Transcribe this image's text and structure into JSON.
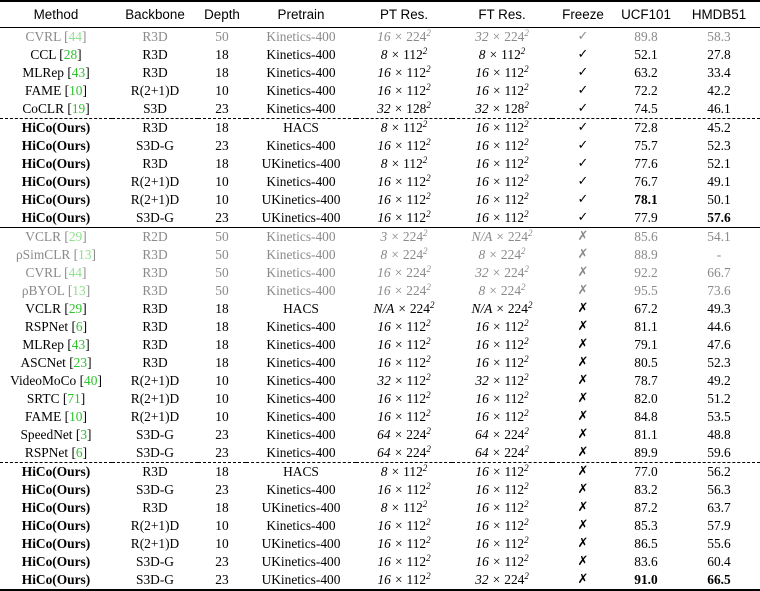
{
  "columns": [
    "Method",
    "Backbone",
    "Depth",
    "Pretrain",
    "PT Res.",
    "FT Res.",
    "Freeze",
    "UCF101",
    "HMDB51"
  ],
  "rows": [
    {
      "method": "CVRL",
      "cite": "44",
      "backbone": "R3D",
      "depth": "50",
      "pretrain": "Kinetics-400",
      "pt": [
        "16",
        "224"
      ],
      "ft": [
        "32",
        "224"
      ],
      "freeze": "✓",
      "ucf": "89.8",
      "hmdb": "58.3",
      "gray": true,
      "bold": false,
      "sep": "",
      "best_ucf": false,
      "best_hmdb": false
    },
    {
      "method": "CCL",
      "cite": "28",
      "backbone": "R3D",
      "depth": "18",
      "pretrain": "Kinetics-400",
      "pt": [
        "8",
        "112"
      ],
      "ft": [
        "8",
        "112"
      ],
      "freeze": "✓",
      "ucf": "52.1",
      "hmdb": "27.8",
      "gray": false,
      "bold": false,
      "sep": "",
      "best_ucf": false,
      "best_hmdb": false
    },
    {
      "method": "MLRep",
      "cite": "43",
      "backbone": "R3D",
      "depth": "18",
      "pretrain": "Kinetics-400",
      "pt": [
        "16",
        "112"
      ],
      "ft": [
        "16",
        "112"
      ],
      "freeze": "✓",
      "ucf": "63.2",
      "hmdb": "33.4",
      "gray": false,
      "bold": false,
      "sep": "",
      "best_ucf": false,
      "best_hmdb": false
    },
    {
      "method": "FAME",
      "cite": "10",
      "backbone": "R(2+1)D",
      "depth": "10",
      "pretrain": "Kinetics-400",
      "pt": [
        "16",
        "112"
      ],
      "ft": [
        "16",
        "112"
      ],
      "freeze": "✓",
      "ucf": "72.2",
      "hmdb": "42.2",
      "gray": false,
      "bold": false,
      "sep": "",
      "best_ucf": false,
      "best_hmdb": false
    },
    {
      "method": "CoCLR",
      "cite": "19",
      "backbone": "S3D",
      "depth": "23",
      "pretrain": "Kinetics-400",
      "pt": [
        "32",
        "128"
      ],
      "ft": [
        "32",
        "128"
      ],
      "freeze": "✓",
      "ucf": "74.5",
      "hmdb": "46.1",
      "gray": false,
      "bold": false,
      "sep": "",
      "best_ucf": false,
      "best_hmdb": false
    },
    {
      "method": "HiCo(Ours)",
      "cite": "",
      "backbone": "R3D",
      "depth": "18",
      "pretrain": "HACS",
      "pt": [
        "8",
        "112"
      ],
      "ft": [
        "16",
        "112"
      ],
      "freeze": "✓",
      "ucf": "72.8",
      "hmdb": "45.2",
      "gray": false,
      "bold": true,
      "sep": "dash",
      "best_ucf": false,
      "best_hmdb": false
    },
    {
      "method": "HiCo(Ours)",
      "cite": "",
      "backbone": "S3D-G",
      "depth": "23",
      "pretrain": "Kinetics-400",
      "pt": [
        "16",
        "112"
      ],
      "ft": [
        "16",
        "112"
      ],
      "freeze": "✓",
      "ucf": "75.7",
      "hmdb": "52.3",
      "gray": false,
      "bold": true,
      "sep": "",
      "best_ucf": false,
      "best_hmdb": false
    },
    {
      "method": "HiCo(Ours)",
      "cite": "",
      "backbone": "R3D",
      "depth": "18",
      "pretrain": "UKinetics-400",
      "pt": [
        "8",
        "112"
      ],
      "ft": [
        "16",
        "112"
      ],
      "freeze": "✓",
      "ucf": "77.6",
      "hmdb": "52.1",
      "gray": false,
      "bold": true,
      "sep": "",
      "best_ucf": false,
      "best_hmdb": false
    },
    {
      "method": "HiCo(Ours)",
      "cite": "",
      "backbone": "R(2+1)D",
      "depth": "10",
      "pretrain": "Kinetics-400",
      "pt": [
        "16",
        "112"
      ],
      "ft": [
        "16",
        "112"
      ],
      "freeze": "✓",
      "ucf": "76.7",
      "hmdb": "49.1",
      "gray": false,
      "bold": true,
      "sep": "",
      "best_ucf": false,
      "best_hmdb": false
    },
    {
      "method": "HiCo(Ours)",
      "cite": "",
      "backbone": "R(2+1)D",
      "depth": "10",
      "pretrain": "UKinetics-400",
      "pt": [
        "16",
        "112"
      ],
      "ft": [
        "16",
        "112"
      ],
      "freeze": "✓",
      "ucf": "78.1",
      "hmdb": "50.1",
      "gray": false,
      "bold": true,
      "sep": "",
      "best_ucf": true,
      "best_hmdb": false
    },
    {
      "method": "HiCo(Ours)",
      "cite": "",
      "backbone": "S3D-G",
      "depth": "23",
      "pretrain": "UKinetics-400",
      "pt": [
        "16",
        "112"
      ],
      "ft": [
        "16",
        "112"
      ],
      "freeze": "✓",
      "ucf": "77.9",
      "hmdb": "57.6",
      "gray": false,
      "bold": true,
      "sep": "",
      "best_ucf": false,
      "best_hmdb": true
    },
    {
      "method": "VCLR",
      "cite": "29",
      "backbone": "R2D",
      "depth": "50",
      "pretrain": "Kinetics-400",
      "pt": [
        "3",
        "224"
      ],
      "ft": [
        "N/A",
        "224"
      ],
      "freeze": "✗",
      "ucf": "85.6",
      "hmdb": "54.1",
      "gray": true,
      "bold": false,
      "sep": "solid",
      "best_ucf": false,
      "best_hmdb": false
    },
    {
      "method": "ρSimCLR",
      "cite": "13",
      "backbone": "R3D",
      "depth": "50",
      "pretrain": "Kinetics-400",
      "pt": [
        "8",
        "224"
      ],
      "ft": [
        "8",
        "224"
      ],
      "freeze": "✗",
      "ucf": "88.9",
      "hmdb": "-",
      "gray": true,
      "bold": false,
      "sep": "",
      "best_ucf": false,
      "best_hmdb": false
    },
    {
      "method": "CVRL",
      "cite": "44",
      "backbone": "R3D",
      "depth": "50",
      "pretrain": "Kinetics-400",
      "pt": [
        "16",
        "224"
      ],
      "ft": [
        "32",
        "224"
      ],
      "freeze": "✗",
      "ucf": "92.2",
      "hmdb": "66.7",
      "gray": true,
      "bold": false,
      "sep": "",
      "best_ucf": false,
      "best_hmdb": false
    },
    {
      "method": "ρBYOL",
      "cite": "13",
      "backbone": "R3D",
      "depth": "50",
      "pretrain": "Kinetics-400",
      "pt": [
        "16",
        "224"
      ],
      "ft": [
        "8",
        "224"
      ],
      "freeze": "✗",
      "ucf": "95.5",
      "hmdb": "73.6",
      "gray": true,
      "bold": false,
      "sep": "",
      "best_ucf": false,
      "best_hmdb": false
    },
    {
      "method": "VCLR",
      "cite": "29",
      "backbone": "R3D",
      "depth": "18",
      "pretrain": "HACS",
      "pt": [
        "N/A",
        "224"
      ],
      "ft": [
        "N/A",
        "224"
      ],
      "freeze": "✗",
      "ucf": "67.2",
      "hmdb": "49.3",
      "gray": false,
      "bold": false,
      "sep": "",
      "best_ucf": false,
      "best_hmdb": false
    },
    {
      "method": "RSPNet",
      "cite": "6",
      "backbone": "R3D",
      "depth": "18",
      "pretrain": "Kinetics-400",
      "pt": [
        "16",
        "112"
      ],
      "ft": [
        "16",
        "112"
      ],
      "freeze": "✗",
      "ucf": "81.1",
      "hmdb": "44.6",
      "gray": false,
      "bold": false,
      "sep": "",
      "best_ucf": false,
      "best_hmdb": false
    },
    {
      "method": "MLRep",
      "cite": "43",
      "backbone": "R3D",
      "depth": "18",
      "pretrain": "Kinetics-400",
      "pt": [
        "16",
        "112"
      ],
      "ft": [
        "16",
        "112"
      ],
      "freeze": "✗",
      "ucf": "79.1",
      "hmdb": "47.6",
      "gray": false,
      "bold": false,
      "sep": "",
      "best_ucf": false,
      "best_hmdb": false
    },
    {
      "method": "ASCNet",
      "cite": "23",
      "backbone": "R3D",
      "depth": "18",
      "pretrain": "Kinetics-400",
      "pt": [
        "16",
        "112"
      ],
      "ft": [
        "16",
        "112"
      ],
      "freeze": "✗",
      "ucf": "80.5",
      "hmdb": "52.3",
      "gray": false,
      "bold": false,
      "sep": "",
      "best_ucf": false,
      "best_hmdb": false
    },
    {
      "method": "VideoMoCo",
      "cite": "40",
      "backbone": "R(2+1)D",
      "depth": "10",
      "pretrain": "Kinetics-400",
      "pt": [
        "32",
        "112"
      ],
      "ft": [
        "32",
        "112"
      ],
      "freeze": "✗",
      "ucf": "78.7",
      "hmdb": "49.2",
      "gray": false,
      "bold": false,
      "sep": "",
      "best_ucf": false,
      "best_hmdb": false
    },
    {
      "method": "SRTC",
      "cite": "71",
      "backbone": "R(2+1)D",
      "depth": "10",
      "pretrain": "Kinetics-400",
      "pt": [
        "16",
        "112"
      ],
      "ft": [
        "16",
        "112"
      ],
      "freeze": "✗",
      "ucf": "82.0",
      "hmdb": "51.2",
      "gray": false,
      "bold": false,
      "sep": "",
      "best_ucf": false,
      "best_hmdb": false
    },
    {
      "method": "FAME",
      "cite": "10",
      "backbone": "R(2+1)D",
      "depth": "10",
      "pretrain": "Kinetics-400",
      "pt": [
        "16",
        "112"
      ],
      "ft": [
        "16",
        "112"
      ],
      "freeze": "✗",
      "ucf": "84.8",
      "hmdb": "53.5",
      "gray": false,
      "bold": false,
      "sep": "",
      "best_ucf": false,
      "best_hmdb": false
    },
    {
      "method": "SpeedNet",
      "cite": "3",
      "backbone": "S3D-G",
      "depth": "23",
      "pretrain": "Kinetics-400",
      "pt": [
        "64",
        "224"
      ],
      "ft": [
        "64",
        "224"
      ],
      "freeze": "✗",
      "ucf": "81.1",
      "hmdb": "48.8",
      "gray": false,
      "bold": false,
      "sep": "",
      "best_ucf": false,
      "best_hmdb": false
    },
    {
      "method": "RSPNet",
      "cite": "6",
      "backbone": "S3D-G",
      "depth": "23",
      "pretrain": "Kinetics-400",
      "pt": [
        "64",
        "224"
      ],
      "ft": [
        "64",
        "224"
      ],
      "freeze": "✗",
      "ucf": "89.9",
      "hmdb": "59.6",
      "gray": false,
      "bold": false,
      "sep": "",
      "best_ucf": false,
      "best_hmdb": false
    },
    {
      "method": "HiCo(Ours)",
      "cite": "",
      "backbone": "R3D",
      "depth": "18",
      "pretrain": "HACS",
      "pt": [
        "8",
        "112"
      ],
      "ft": [
        "16",
        "112"
      ],
      "freeze": "✗",
      "ucf": "77.0",
      "hmdb": "56.2",
      "gray": false,
      "bold": true,
      "sep": "dash",
      "best_ucf": false,
      "best_hmdb": false
    },
    {
      "method": "HiCo(Ours)",
      "cite": "",
      "backbone": "S3D-G",
      "depth": "23",
      "pretrain": "Kinetics-400",
      "pt": [
        "16",
        "112"
      ],
      "ft": [
        "16",
        "112"
      ],
      "freeze": "✗",
      "ucf": "83.2",
      "hmdb": "56.3",
      "gray": false,
      "bold": true,
      "sep": "",
      "best_ucf": false,
      "best_hmdb": false
    },
    {
      "method": "HiCo(Ours)",
      "cite": "",
      "backbone": "R3D",
      "depth": "18",
      "pretrain": "UKinetics-400",
      "pt": [
        "8",
        "112"
      ],
      "ft": [
        "16",
        "112"
      ],
      "freeze": "✗",
      "ucf": "87.2",
      "hmdb": "63.7",
      "gray": false,
      "bold": true,
      "sep": "",
      "best_ucf": false,
      "best_hmdb": false
    },
    {
      "method": "HiCo(Ours)",
      "cite": "",
      "backbone": "R(2+1)D",
      "depth": "10",
      "pretrain": "Kinetics-400",
      "pt": [
        "16",
        "112"
      ],
      "ft": [
        "16",
        "112"
      ],
      "freeze": "✗",
      "ucf": "85.3",
      "hmdb": "57.9",
      "gray": false,
      "bold": true,
      "sep": "",
      "best_ucf": false,
      "best_hmdb": false
    },
    {
      "method": "HiCo(Ours)",
      "cite": "",
      "backbone": "R(2+1)D",
      "depth": "10",
      "pretrain": "UKinetics-400",
      "pt": [
        "16",
        "112"
      ],
      "ft": [
        "16",
        "112"
      ],
      "freeze": "✗",
      "ucf": "86.5",
      "hmdb": "55.6",
      "gray": false,
      "bold": true,
      "sep": "",
      "best_ucf": false,
      "best_hmdb": false
    },
    {
      "method": "HiCo(Ours)",
      "cite": "",
      "backbone": "S3D-G",
      "depth": "23",
      "pretrain": "UKinetics-400",
      "pt": [
        "16",
        "112"
      ],
      "ft": [
        "16",
        "112"
      ],
      "freeze": "✗",
      "ucf": "83.6",
      "hmdb": "60.4",
      "gray": false,
      "bold": true,
      "sep": "",
      "best_ucf": false,
      "best_hmdb": false
    },
    {
      "method": "HiCo(Ours)",
      "cite": "",
      "backbone": "S3D-G",
      "depth": "23",
      "pretrain": "UKinetics-400",
      "pt": [
        "16",
        "112"
      ],
      "ft": [
        "32",
        "224"
      ],
      "freeze": "✗",
      "ucf": "91.0",
      "hmdb": "66.5",
      "gray": false,
      "bold": true,
      "sep": "",
      "best_ucf": true,
      "best_hmdb": true
    }
  ],
  "colors": {
    "cite": "#2fc22f",
    "gray_text": "#8a8a8a",
    "text": "#000000"
  }
}
